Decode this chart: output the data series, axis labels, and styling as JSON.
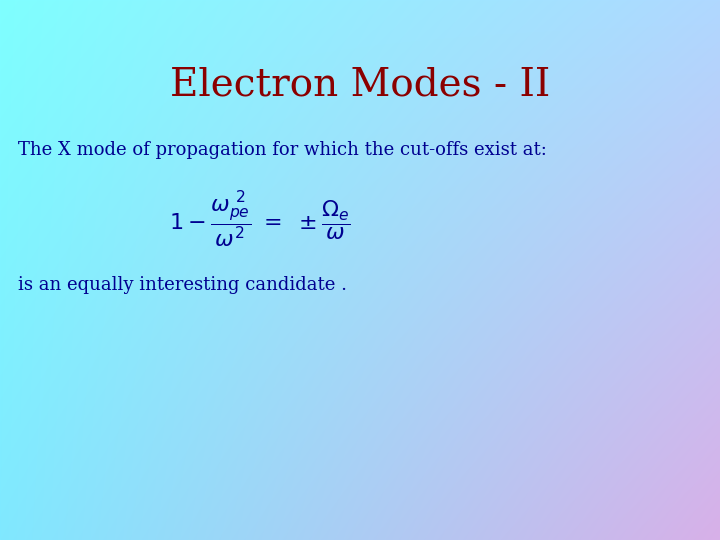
{
  "title": "Electron Modes - II",
  "title_color": "#8B0000",
  "title_fontsize": 28,
  "body_text1": "The X mode of propagation for which the cut-offs exist at:",
  "body_text2": "is an equally interesting candidate .",
  "body_color": "#000090",
  "body_fontsize": 13,
  "eq_color": "#000090",
  "eq_fontsize": 16,
  "bg_tl": [
    0,
    255,
    255
  ],
  "bg_tr": [
    180,
    210,
    255
  ],
  "bg_bl": [
    100,
    220,
    255
  ],
  "bg_br": [
    210,
    170,
    230
  ]
}
